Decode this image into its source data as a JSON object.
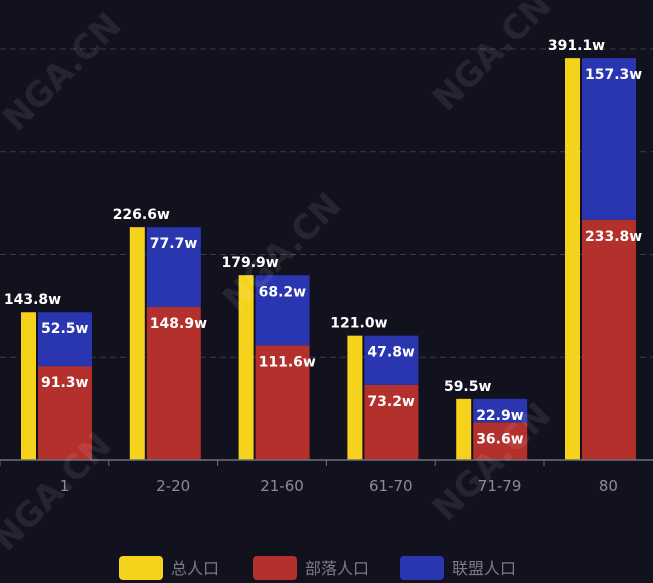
{
  "chart_data": {
    "type": "bar",
    "title": "",
    "xlabel": "",
    "ylabel": "",
    "categories": [
      "1",
      "2-20",
      "21-60",
      "61-70",
      "71-79",
      "80"
    ],
    "ylim": [
      0,
      400
    ],
    "grid": true,
    "legend_position": "bottom",
    "unit_suffix": "w",
    "series": [
      {
        "name": "总人口",
        "color": "#f5d31c",
        "values": [
          143.8,
          226.6,
          179.9,
          121.0,
          59.5,
          391.1
        ],
        "labels": [
          "143.8w",
          "226.6w",
          "179.9w",
          "121.0w",
          "59.5w",
          "391.1w"
        ]
      },
      {
        "name": "部落人口",
        "color": "#b3302c",
        "values": [
          91.3,
          148.9,
          111.6,
          73.2,
          36.6,
          233.8
        ],
        "labels": [
          "91.3w",
          "148.9w",
          "111.6w",
          "73.2w",
          "36.6w",
          "233.8w"
        ]
      },
      {
        "name": "联盟人口",
        "color": "#2a35b0",
        "values": [
          52.5,
          77.7,
          68.2,
          47.8,
          22.9,
          157.3
        ],
        "labels": [
          "52.5w",
          "77.7w",
          "68.2w",
          "47.8w",
          "22.9w",
          "157.3w"
        ]
      }
    ]
  },
  "watermark": {
    "text": "NGA.CN"
  }
}
